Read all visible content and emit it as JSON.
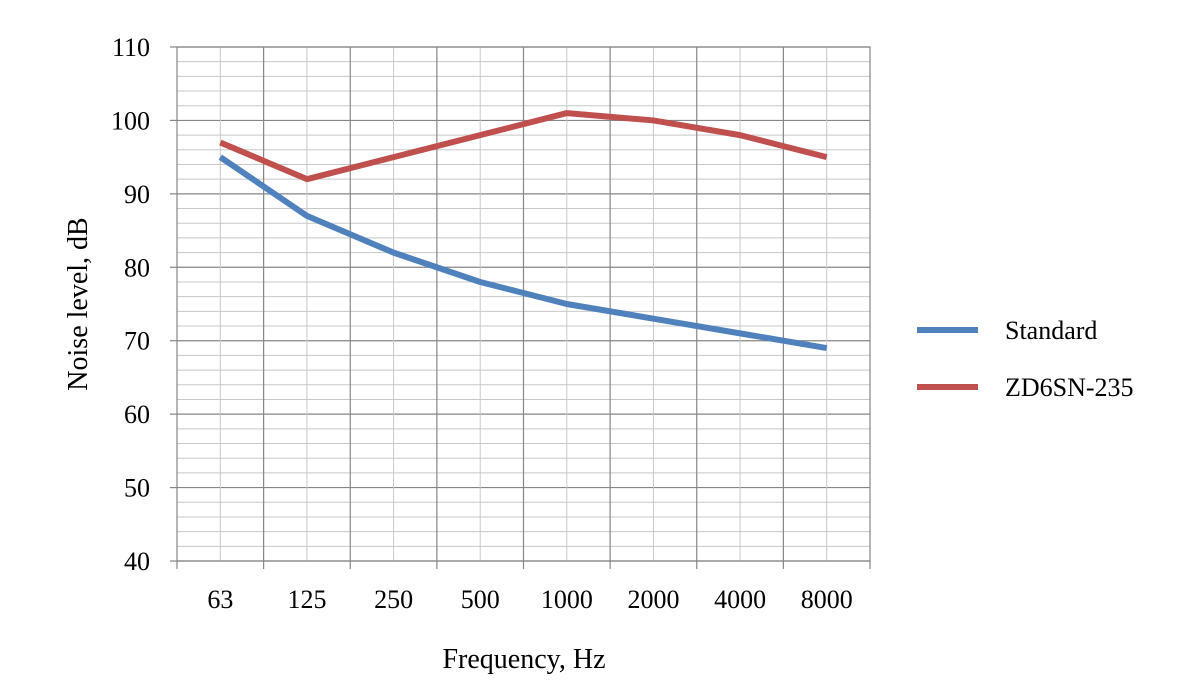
{
  "chart_data": {
    "type": "line",
    "title": "",
    "xlabel": "Frequency, Hz",
    "ylabel": "Noise level, dB",
    "categories": [
      "63",
      "125",
      "250",
      "500",
      "1000",
      "2000",
      "4000",
      "8000"
    ],
    "ylim": [
      40,
      110
    ],
    "y_major_step": 10,
    "y_minor_step": 2,
    "grid": true,
    "legend_position": "right",
    "series": [
      {
        "name": "Standard",
        "color": "#4F81BD",
        "values": [
          95,
          87,
          82,
          78,
          75,
          73,
          71,
          69
        ]
      },
      {
        "name": "ZD6SN-235",
        "color": "#C0504D",
        "values": [
          97,
          92,
          95,
          98,
          101,
          100,
          98,
          95
        ]
      }
    ]
  }
}
